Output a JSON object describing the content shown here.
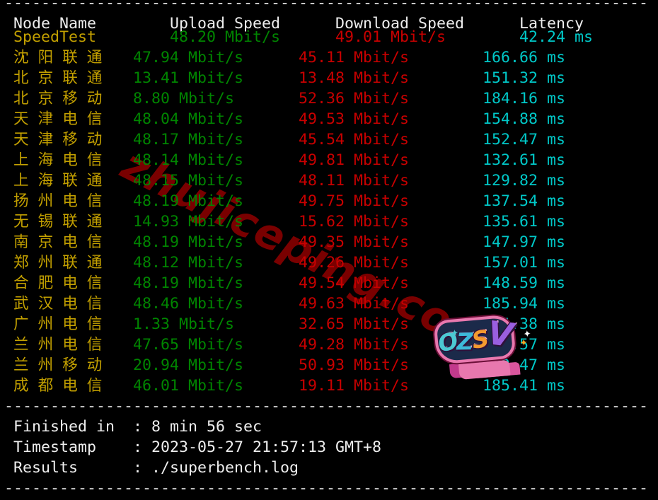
{
  "app": "superbench speedtest terminal output",
  "dash_line": "----------------------------------------------------------------------",
  "table": {
    "columns": [
      "Node Name",
      "Upload Speed",
      "Download Speed",
      "Latency"
    ],
    "rows": [
      {
        "name": "SpeedTest",
        "upload": "48.20 Mbit/s",
        "download": "49.01 Mbit/s",
        "latency": "42.24 ms"
      },
      {
        "name": "沈阳联通",
        "upload": "47.94 Mbit/s",
        "download": "45.11 Mbit/s",
        "latency": "166.66 ms"
      },
      {
        "name": "北京联通",
        "upload": "13.41 Mbit/s",
        "download": "13.48 Mbit/s",
        "latency": "151.32 ms"
      },
      {
        "name": "北京移动",
        "upload": "8.80 Mbit/s",
        "download": "52.36 Mbit/s",
        "latency": "184.16 ms"
      },
      {
        "name": "天津电信",
        "upload": "48.04 Mbit/s",
        "download": "49.53 Mbit/s",
        "latency": "154.88 ms"
      },
      {
        "name": "天津移动",
        "upload": "48.17 Mbit/s",
        "download": "45.54 Mbit/s",
        "latency": "152.47 ms"
      },
      {
        "name": "上海电信",
        "upload": "48.14 Mbit/s",
        "download": "49.81 Mbit/s",
        "latency": "132.61 ms"
      },
      {
        "name": "上海联通",
        "upload": "48.15 Mbit/s",
        "download": "48.11 Mbit/s",
        "latency": "129.82 ms"
      },
      {
        "name": "扬州电信",
        "upload": "48.19 Mbit/s",
        "download": "49.75 Mbit/s",
        "latency": "137.54 ms"
      },
      {
        "name": "无锡联通",
        "upload": "14.93 Mbit/s",
        "download": "15.62 Mbit/s",
        "latency": "135.61 ms"
      },
      {
        "name": "南京电信",
        "upload": "48.19 Mbit/s",
        "download": "49.35 Mbit/s",
        "latency": "147.97 ms"
      },
      {
        "name": "郑州联通",
        "upload": "48.12 Mbit/s",
        "download": "49.26 Mbit/s",
        "latency": "157.01 ms"
      },
      {
        "name": "合肥电信",
        "upload": "48.19 Mbit/s",
        "download": "49.54 Mbit/s",
        "latency": "148.59 ms"
      },
      {
        "name": "武汉电信",
        "upload": "48.46 Mbit/s",
        "download": "49.63 Mbit/s",
        "latency": "185.94 ms"
      },
      {
        "name": "广州电信",
        "upload": "1.33 Mbit/s",
        "download": "32.65 Mbit/s",
        "latency": "154.38 ms"
      },
      {
        "name": "兰州电信",
        "upload": "47.65 Mbit/s",
        "download": "49.28 Mbit/s",
        "latency": "151.57 ms"
      },
      {
        "name": "兰州移动",
        "upload": "20.94 Mbit/s",
        "download": "50.93 Mbit/s",
        "latency": "182.47 ms"
      },
      {
        "name": "成都电信",
        "upload": "46.01 Mbit/s",
        "download": "19.11 Mbit/s",
        "latency": "185.41 ms"
      }
    ]
  },
  "footer": {
    "separator": ": ",
    "rows": [
      {
        "label": "Finished in",
        "value": "8 min 56 sec"
      },
      {
        "label": "Timestamp",
        "value": "2023-05-27 21:57:13 GMT+8"
      },
      {
        "label": "Results",
        "value": "./superbench.log"
      }
    ]
  },
  "watermark": {
    "text": "zhujiceping.com",
    "color": "#8b0000"
  },
  "sticker": {
    "text": "OZSV",
    "letter_colors": [
      "#4cc9d4",
      "#3db9d9",
      "#f49a2f",
      "#9a5fe0"
    ],
    "outline_color": "#e878ae"
  },
  "colors": {
    "background": "#000000",
    "header_text": "#eeeeee",
    "node_name": "#c3a000",
    "upload_speed": "#008500",
    "download_speed": "#c80000",
    "latency": "#00c8c8"
  }
}
